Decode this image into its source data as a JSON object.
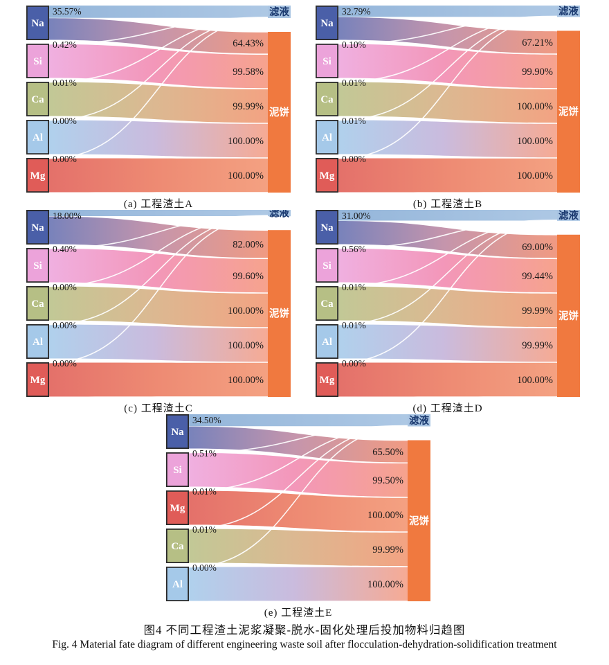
{
  "figure": {
    "caption_zh": "图4  不同工程渣土泥浆凝聚-脱水-固化处理后投加物料归趋图",
    "caption_en": "Fig. 4  Material fate diagram of different engineering waste soil after flocculation-dehydration-solidification treatment"
  },
  "targets": {
    "filtrate": "滤液",
    "cake": "泥饼"
  },
  "colors": {
    "filtrate_node": "#a9c5e3",
    "filtrate_label": "#1b3a70",
    "cake_node": "#f0793f",
    "cake_label": "#ffffff",
    "source_label": "#ffffff",
    "source_border": "#2b2b2b",
    "pct_label": "#1a1a1a",
    "elements": {
      "Na": {
        "node": "#4a5fa8",
        "cake_gradient": [
          "#6e79b6",
          "#c08da6",
          "#ef9379"
        ],
        "filtrate_gradient": [
          "#8fb2d8",
          "#a9c5e3"
        ]
      },
      "Si": {
        "node": "#eca3da",
        "cake_gradient": [
          "#efaade",
          "#f28fb4",
          "#f59c85"
        ]
      },
      "Ca": {
        "node": "#b6bf85",
        "cake_gradient": [
          "#bdc48e",
          "#d9b389",
          "#f29c79"
        ]
      },
      "Al": {
        "node": "#a5c9e9",
        "cake_gradient": [
          "#aacdeb",
          "#c6b6db",
          "#f5a48c"
        ]
      },
      "Mg": {
        "node": "#e05c58",
        "cake_gradient": [
          "#e2665f",
          "#ec8168",
          "#f39a78"
        ]
      }
    }
  },
  "chart_data": [
    {
      "type": "sankey",
      "panel_id": "a",
      "panel_label": "(a) 工程渣土A",
      "sources": [
        "Na",
        "Si",
        "Ca",
        "Al",
        "Mg"
      ],
      "targets": [
        "滤液",
        "泥饼"
      ],
      "flows_pct_to_filtrate": [
        35.57,
        0.42,
        0.01,
        0.0,
        0.0
      ],
      "flows_pct_to_cake": [
        64.43,
        99.58,
        99.99,
        100.0,
        100.0
      ]
    },
    {
      "type": "sankey",
      "panel_id": "b",
      "panel_label": "(b) 工程渣土B",
      "sources": [
        "Na",
        "Si",
        "Ca",
        "Al",
        "Mg"
      ],
      "targets": [
        "滤液",
        "泥饼"
      ],
      "flows_pct_to_filtrate": [
        32.79,
        0.1,
        0.01,
        0.01,
        0.0
      ],
      "flows_pct_to_cake": [
        67.21,
        99.9,
        100.0,
        100.0,
        100.0
      ]
    },
    {
      "type": "sankey",
      "panel_id": "c",
      "panel_label": "(c) 工程渣土C",
      "sources": [
        "Na",
        "Si",
        "Ca",
        "Al",
        "Mg"
      ],
      "targets": [
        "滤液",
        "泥饼"
      ],
      "flows_pct_to_filtrate": [
        18.0,
        0.4,
        0.0,
        0.0,
        0.0
      ],
      "flows_pct_to_cake": [
        82.0,
        99.6,
        100.0,
        100.0,
        100.0
      ]
    },
    {
      "type": "sankey",
      "panel_id": "d",
      "panel_label": "(d) 工程渣土D",
      "sources": [
        "Na",
        "Si",
        "Ca",
        "Al",
        "Mg"
      ],
      "targets": [
        "滤液",
        "泥饼"
      ],
      "flows_pct_to_filtrate": [
        31.0,
        0.56,
        0.01,
        0.01,
        0.0
      ],
      "flows_pct_to_cake": [
        69.0,
        99.44,
        99.99,
        99.99,
        100.0
      ]
    },
    {
      "type": "sankey",
      "panel_id": "e",
      "panel_label": "(e) 工程渣土E",
      "sources": [
        "Na",
        "Si",
        "Mg",
        "Ca",
        "Al"
      ],
      "targets": [
        "滤液",
        "泥饼"
      ],
      "flows_pct_to_filtrate": [
        34.5,
        0.51,
        0.01,
        0.01,
        0.0
      ],
      "flows_pct_to_cake": [
        65.5,
        99.5,
        100.0,
        99.99,
        100.0
      ]
    }
  ]
}
